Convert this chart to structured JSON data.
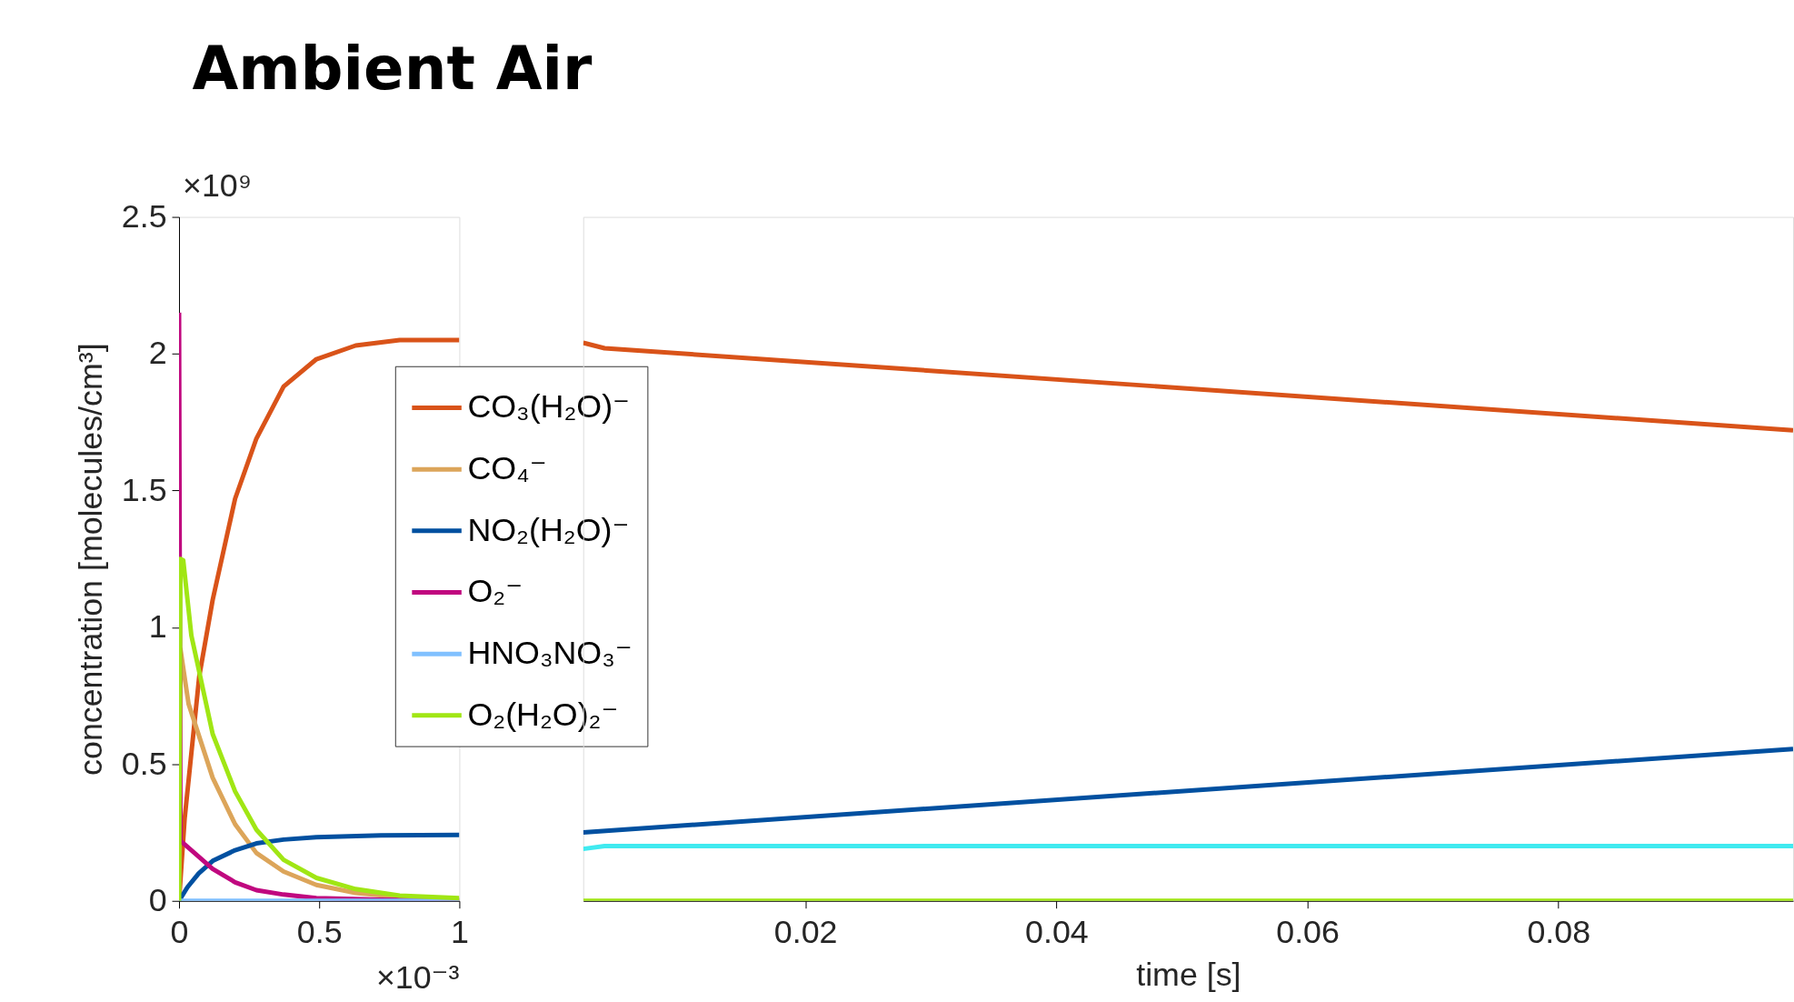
{
  "chart_data": [
    {
      "type": "line",
      "title": "Ambient Air",
      "ylabel": "concentration [molecules/cm³]",
      "xlim": [
        0,
        1
      ],
      "xticks": [
        0,
        0.5,
        1
      ],
      "ylim": [
        0,
        2.5
      ],
      "yticks": [
        0,
        0.5,
        1,
        1.5,
        2,
        2.5
      ],
      "legend": "right",
      "annotations": [
        "×10⁹",
        "×10⁻³"
      ],
      "series": [
        {
          "name": "CO₃(H₂O)⁻",
          "color": "#d95319",
          "x": [
            0,
            0.02,
            0.072,
            0.12,
            0.2,
            0.276,
            0.373,
            0.49,
            0.63,
            0.787,
            1
          ],
          "values": [
            0,
            0.3,
            0.82,
            1.1,
            1.47,
            1.69,
            1.88,
            1.98,
            2.03,
            2.05,
            2.05
          ]
        },
        {
          "name": "CO₄⁻",
          "color": "#dca55a",
          "x": [
            0,
            0.005,
            0.034,
            0.12,
            0.2,
            0.276,
            0.373,
            0.49,
            0.63,
            0.787,
            1
          ],
          "values": [
            0,
            0.92,
            0.72,
            0.45,
            0.28,
            0.175,
            0.107,
            0.058,
            0.029,
            0.014,
            0.004
          ]
        },
        {
          "name": "NO₂(H₂O)⁻",
          "color": "#0050a0",
          "x": [
            0,
            0.03,
            0.07,
            0.12,
            0.2,
            0.276,
            0.373,
            0.49,
            0.72,
            1
          ],
          "values": [
            0,
            0.05,
            0.1,
            0.146,
            0.185,
            0.21,
            0.224,
            0.233,
            0.239,
            0.241
          ]
        },
        {
          "name": "O₂⁻",
          "color": "#c0087f",
          "x": [
            0,
            0.005,
            0.12,
            0.2,
            0.276,
            0.373,
            0.49,
            0.72,
            1
          ],
          "values": [
            2.15,
            0.22,
            0.117,
            0.068,
            0.039,
            0.023,
            0.01,
            0.004,
            0
          ]
        },
        {
          "name": "HNO₃NO₃⁻",
          "color": "#80c0ff",
          "x": [
            0,
            1
          ],
          "values": [
            0,
            0
          ]
        },
        {
          "name": "O₂(H₂O)₂⁻",
          "color": "#a0e614",
          "x": [
            0,
            0.005,
            0.015,
            0.044,
            0.082,
            0.12,
            0.2,
            0.276,
            0.373,
            0.49,
            0.63,
            0.787,
            1
          ],
          "values": [
            0,
            1.25,
            1.245,
            0.97,
            0.79,
            0.61,
            0.4,
            0.26,
            0.15,
            0.084,
            0.043,
            0.019,
            0.01
          ]
        }
      ]
    },
    {
      "type": "line",
      "xlabel": "time [s]",
      "xlim": [
        0.0023,
        0.0987
      ],
      "xticks": [
        0.02,
        0.04,
        0.06,
        0.08
      ],
      "ylim": [
        0,
        2.5
      ],
      "tick_labels": "x",
      "series": [
        {
          "color": "#d95319",
          "x": [
            0.0023,
            0.004,
            0.0987
          ],
          "values": [
            2.04,
            2.02,
            1.72
          ]
        },
        {
          "color": "#0050a0",
          "x": [
            0.0023,
            0.0987
          ],
          "values": [
            0.25,
            0.555
          ]
        },
        {
          "color": "#40eaf0",
          "x": [
            0.0023,
            0.004,
            0.0987
          ],
          "values": [
            0.19,
            0.2,
            0.2
          ]
        },
        {
          "color": "#a0e614",
          "x": [
            0.0023,
            0.0987
          ],
          "values": [
            0,
            0
          ]
        }
      ]
    }
  ]
}
